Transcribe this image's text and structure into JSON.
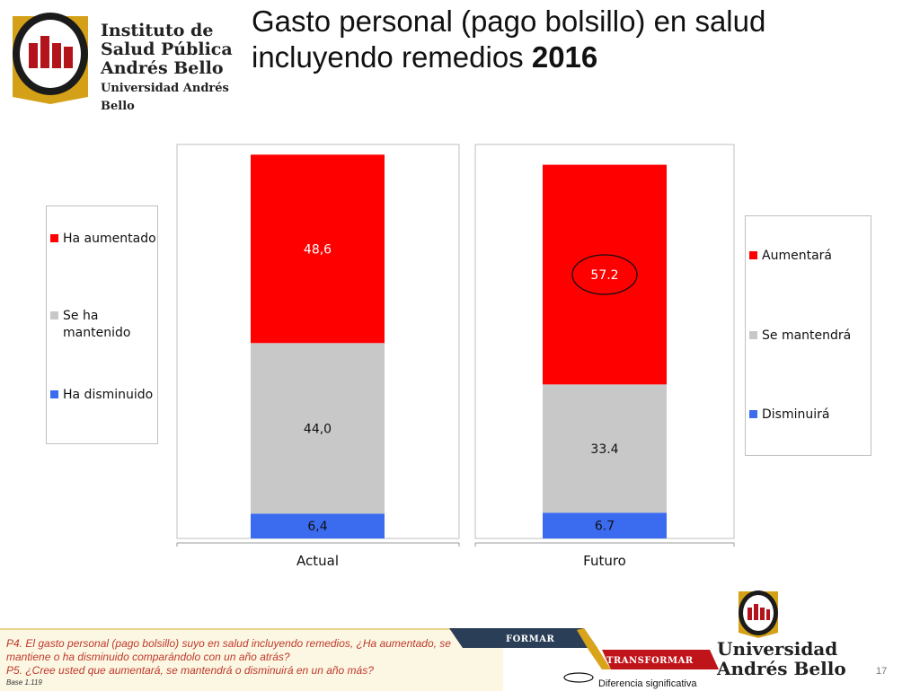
{
  "header": {
    "logo_lines": [
      "Instituto de",
      "Salud Pública",
      "Andrés Bello"
    ],
    "logo_sub": "Universidad Andrés Bello",
    "title_main": "Gasto personal (pago bolsillo) en salud incluyendo remedios",
    "title_year": "2016"
  },
  "colors": {
    "red": "#ff0000",
    "gray": "#c8c8c8",
    "blue": "#3b6cf0"
  },
  "legend_left": [
    "Ha aumentado",
    "Se ha mantenido",
    "Ha disminuido"
  ],
  "legend_right": [
    "Aumentará",
    "Se mantendrá",
    "Disminuirá"
  ],
  "chart_data": {
    "type": "bar",
    "stacked": true,
    "categories": [
      "Actual",
      "Futuro"
    ],
    "series": [
      {
        "name": "Ha aumentado / Aumentará",
        "values": [
          48.6,
          57.2
        ],
        "labels": [
          "48,6",
          "57.2"
        ],
        "color": "#ff0000"
      },
      {
        "name": "Se ha mantenido / Se mantendrá",
        "values": [
          44.0,
          33.4
        ],
        "labels": [
          "44,0",
          "33.4"
        ],
        "color": "#c8c8c8"
      },
      {
        "name": "Ha disminuido / Disminuirá",
        "values": [
          6.4,
          6.7
        ],
        "labels": [
          "6,4",
          "6.7"
        ],
        "color": "#3b6cf0"
      }
    ],
    "ylim": [
      0,
      100
    ],
    "highlighted": "57.2"
  },
  "footer": {
    "q1": "P4. El gasto personal (pago bolsillo) suyo en salud incluyendo remedios, ¿Ha aumentado, se mantiene o ha disminuido comparándolo con un año atrás?",
    "q2": "P5. ¿Cree usted que aumentará, se mantendrá o disminuirá en un año más?",
    "base": "Base 1.119",
    "banner1": "FORMAR",
    "banner2": "TRANSFORMAR",
    "uab_line1": "Universidad",
    "uab_line2": "Andrés Bello",
    "significance": "Diferencia significativa",
    "page_number": "17"
  }
}
